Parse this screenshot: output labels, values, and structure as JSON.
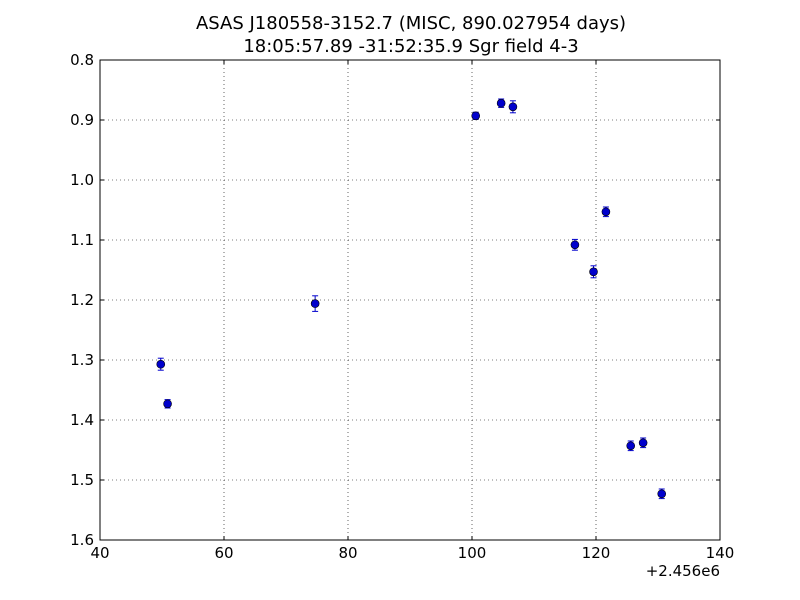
{
  "chart_data": {
    "type": "scatter",
    "title": "ASAS J180558-3152.7  (MISC, 890.027954 days)",
    "subtitle": "18:05:57.89 -31:52:35.9 Sgr field 4-3",
    "xlabel": "",
    "ylabel": "",
    "x_offset_label": "+2.456e6",
    "xlim": [
      40,
      140
    ],
    "ylim": [
      1.6,
      0.8
    ],
    "y_inverted": true,
    "x_ticks": [
      40,
      60,
      80,
      100,
      120,
      140
    ],
    "x_tick_labels": [
      "40",
      "60",
      "80",
      "100",
      "120",
      "140"
    ],
    "y_ticks": [
      0.8,
      0.9,
      1.0,
      1.1,
      1.2,
      1.3,
      1.4,
      1.5,
      1.6
    ],
    "y_tick_labels": [
      "0.8",
      "0.9",
      "1.0",
      "1.1",
      "1.2",
      "1.3",
      "1.4",
      "1.5",
      "1.6"
    ],
    "grid": true,
    "marker_color": "#0000cc",
    "points": [
      {
        "x": 49.8,
        "y": 1.307,
        "err": 0.01
      },
      {
        "x": 50.9,
        "y": 1.373,
        "err": 0.007
      },
      {
        "x": 74.7,
        "y": 1.206,
        "err": 0.013
      },
      {
        "x": 100.6,
        "y": 0.893,
        "err": 0.006
      },
      {
        "x": 104.7,
        "y": 0.872,
        "err": 0.007
      },
      {
        "x": 106.6,
        "y": 0.878,
        "err": 0.01
      },
      {
        "x": 116.6,
        "y": 1.108,
        "err": 0.009
      },
      {
        "x": 119.6,
        "y": 1.153,
        "err": 0.01
      },
      {
        "x": 121.6,
        "y": 1.053,
        "err": 0.008
      },
      {
        "x": 125.6,
        "y": 1.443,
        "err": 0.008
      },
      {
        "x": 127.6,
        "y": 1.438,
        "err": 0.008
      },
      {
        "x": 130.6,
        "y": 1.523,
        "err": 0.008
      }
    ]
  }
}
